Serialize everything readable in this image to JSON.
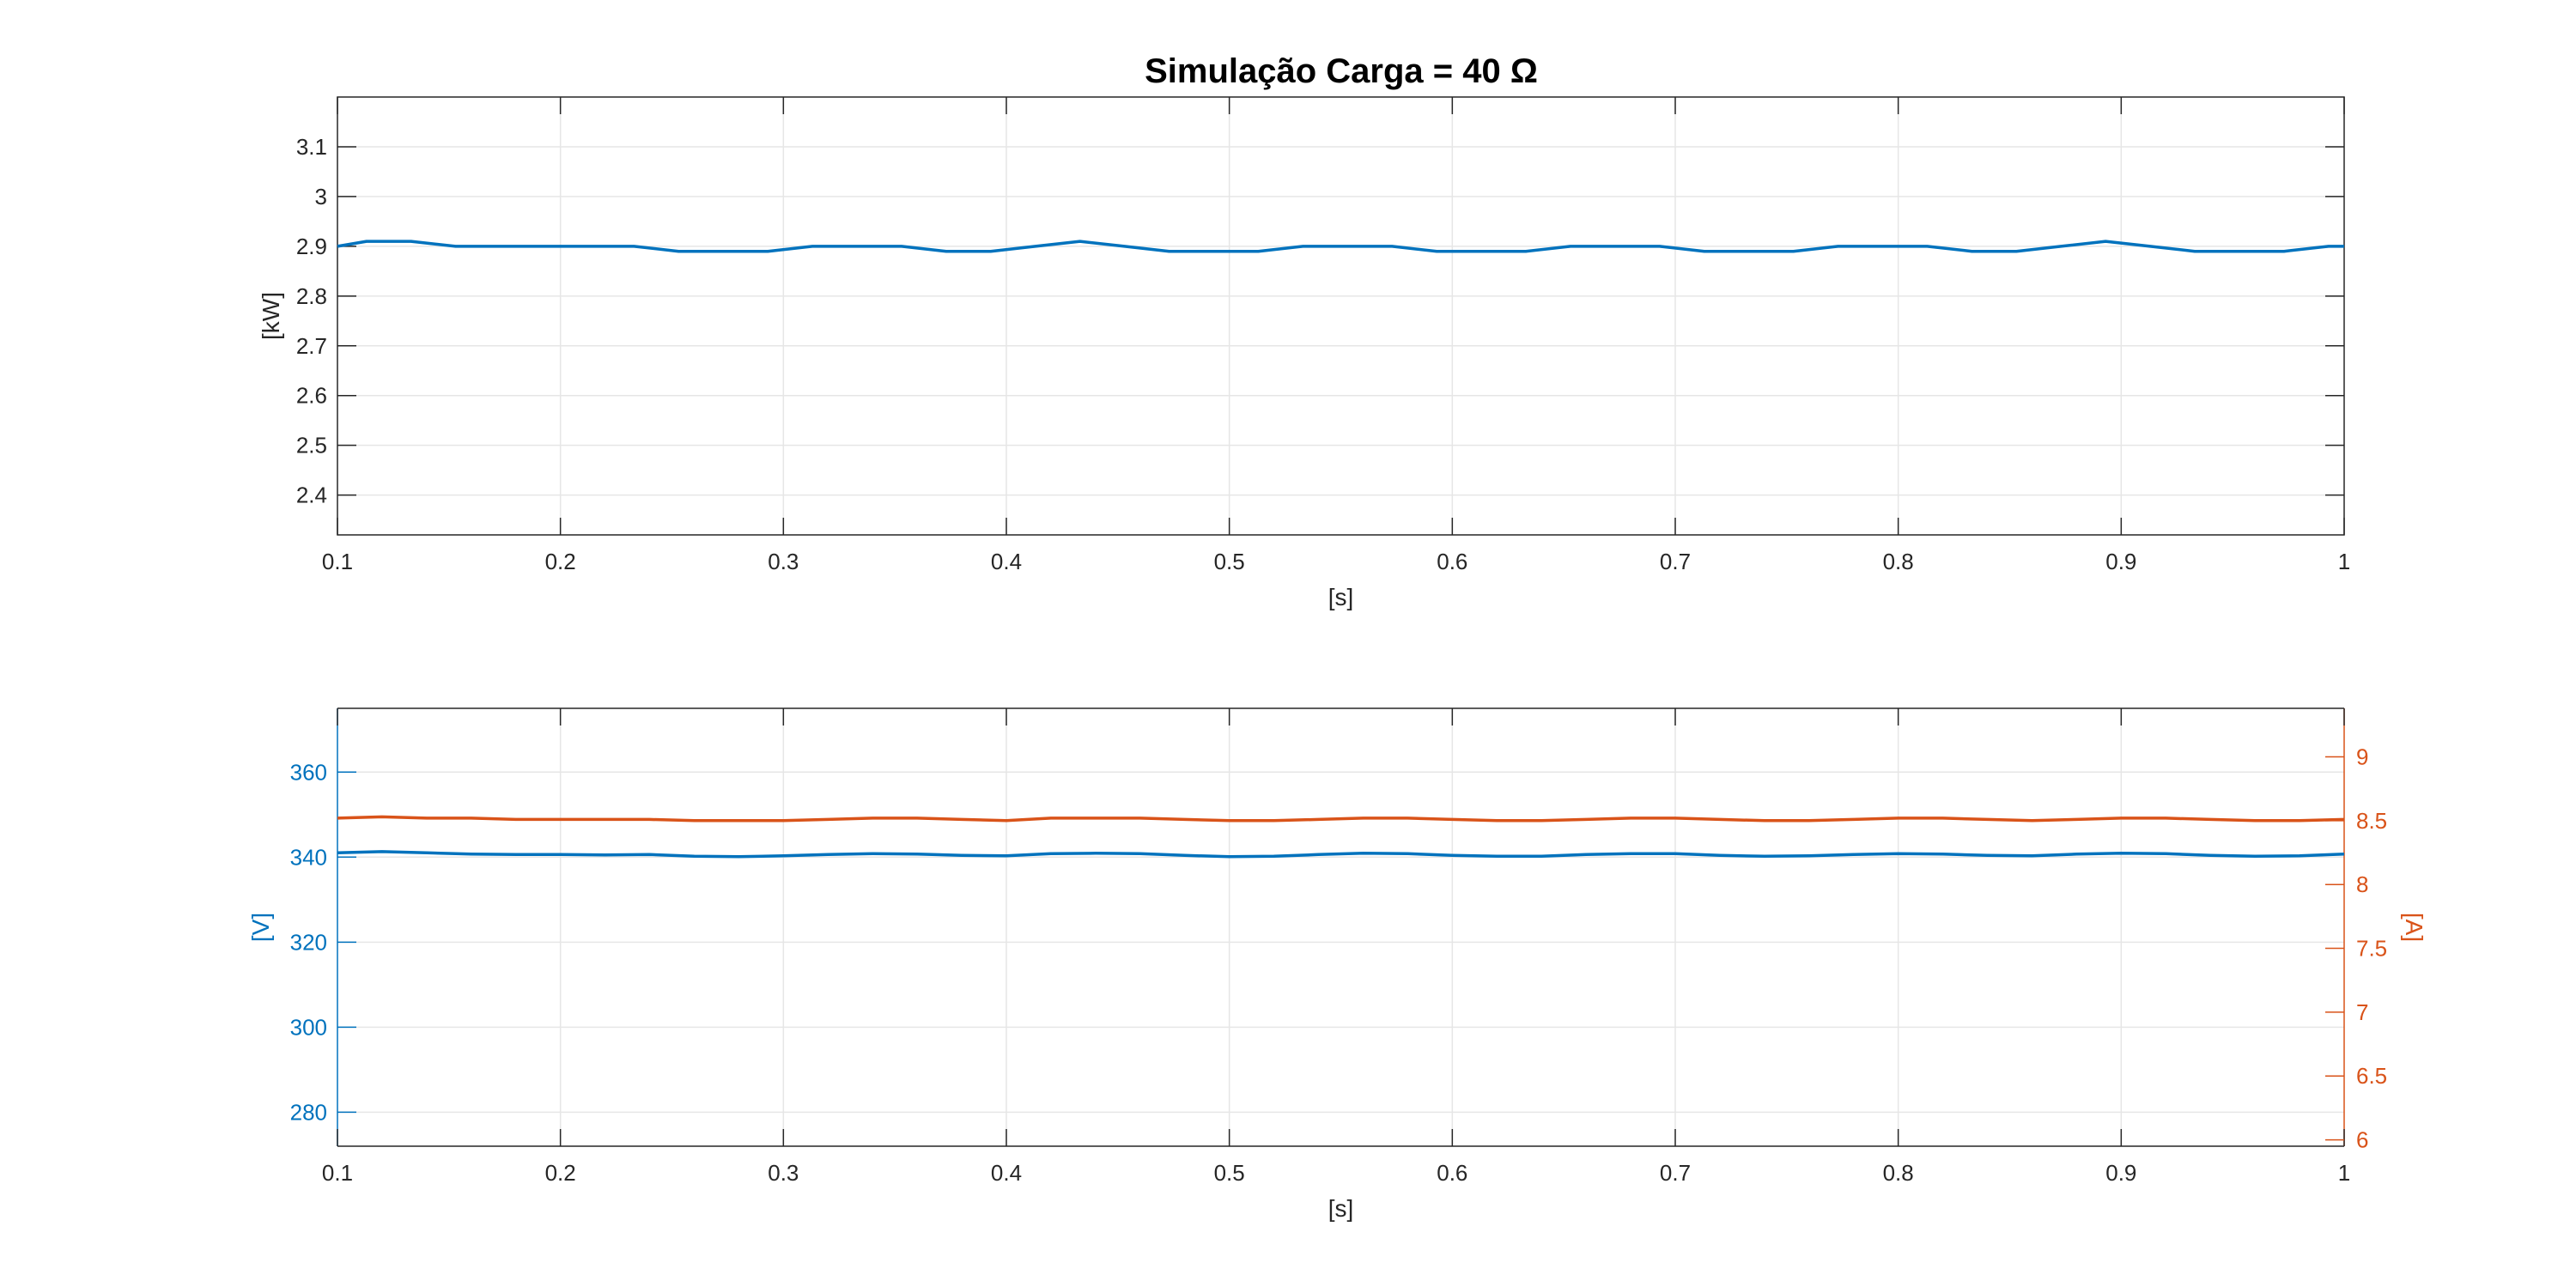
{
  "figure": {
    "title": "Simulação Carga = 40 Ω"
  },
  "chart_data": [
    {
      "type": "line",
      "title": "Simulação Carga = 40 Ω",
      "xlabel": "[s]",
      "ylabel": "[kW]",
      "xlim": [
        0.1,
        1.0
      ],
      "ylim": [
        2.32,
        3.2
      ],
      "xticks": [
        0.1,
        0.2,
        0.3,
        0.4,
        0.5,
        0.6,
        0.7,
        0.8,
        0.9,
        1.0
      ],
      "xtick_labels": [
        "0.1",
        "0.2",
        "0.3",
        "0.4",
        "0.5",
        "0.6",
        "0.7",
        "0.8",
        "0.9",
        "1"
      ],
      "yticks": [
        2.4,
        2.5,
        2.6,
        2.7,
        2.8,
        2.9,
        3.0,
        3.1
      ],
      "ytick_labels": [
        "2.4",
        "2.5",
        "2.6",
        "2.7",
        "2.8",
        "2.9",
        "3",
        "3.1"
      ],
      "grid": true,
      "series": [
        {
          "color": "#0072BD",
          "x": [
            0.1,
            0.113,
            0.133,
            0.153,
            0.173,
            0.193,
            0.213,
            0.233,
            0.253,
            0.273,
            0.293,
            0.313,
            0.333,
            0.353,
            0.373,
            0.393,
            0.413,
            0.433,
            0.453,
            0.473,
            0.493,
            0.513,
            0.533,
            0.553,
            0.573,
            0.593,
            0.613,
            0.633,
            0.653,
            0.673,
            0.693,
            0.713,
            0.733,
            0.753,
            0.773,
            0.793,
            0.813,
            0.833,
            0.853,
            0.873,
            0.893,
            0.913,
            0.933,
            0.953,
            0.973,
            0.993,
            1.0
          ],
          "y": [
            2.9,
            2.91,
            2.91,
            2.9,
            2.9,
            2.9,
            2.9,
            2.9,
            2.89,
            2.89,
            2.89,
            2.9,
            2.9,
            2.9,
            2.89,
            2.89,
            2.9,
            2.91,
            2.9,
            2.89,
            2.89,
            2.89,
            2.9,
            2.9,
            2.9,
            2.89,
            2.89,
            2.89,
            2.9,
            2.9,
            2.9,
            2.89,
            2.89,
            2.89,
            2.9,
            2.9,
            2.9,
            2.89,
            2.89,
            2.9,
            2.91,
            2.9,
            2.89,
            2.89,
            2.89,
            2.9,
            2.9
          ]
        }
      ]
    },
    {
      "type": "line",
      "xlabel": "[s]",
      "ylabel_left": "[V]",
      "ylabel_right": "[A]",
      "xlim": [
        0.1,
        1.0
      ],
      "ylim_left": [
        272,
        375
      ],
      "ylim_right": [
        5.95,
        9.38
      ],
      "xticks": [
        0.1,
        0.2,
        0.3,
        0.4,
        0.5,
        0.6,
        0.7,
        0.8,
        0.9,
        1.0
      ],
      "xtick_labels": [
        "0.1",
        "0.2",
        "0.3",
        "0.4",
        "0.5",
        "0.6",
        "0.7",
        "0.8",
        "0.9",
        "1"
      ],
      "yticks_left": [
        280,
        300,
        320,
        340,
        360
      ],
      "ytick_labels_left": [
        "280",
        "300",
        "320",
        "340",
        "360"
      ],
      "yticks_right": [
        6,
        6.5,
        7,
        7.5,
        8,
        8.5,
        9
      ],
      "ytick_labels_right": [
        "6",
        "6.5",
        "7",
        "7.5",
        "8",
        "8.5",
        "9"
      ],
      "grid": true,
      "left_axis_color": "#0072BD",
      "right_axis_color": "#D95319",
      "series": [
        {
          "axis": "left",
          "color": "#0072BD",
          "x": [
            0.1,
            0.12,
            0.14,
            0.16,
            0.18,
            0.2,
            0.22,
            0.24,
            0.26,
            0.28,
            0.3,
            0.32,
            0.34,
            0.36,
            0.38,
            0.4,
            0.42,
            0.44,
            0.46,
            0.48,
            0.5,
            0.52,
            0.54,
            0.56,
            0.58,
            0.6,
            0.62,
            0.64,
            0.66,
            0.68,
            0.7,
            0.72,
            0.74,
            0.76,
            0.78,
            0.8,
            0.82,
            0.84,
            0.86,
            0.88,
            0.9,
            0.92,
            0.94,
            0.96,
            0.98,
            1.0
          ],
          "y": [
            341.0,
            341.3,
            341.0,
            340.7,
            340.6,
            340.6,
            340.5,
            340.6,
            340.2,
            340.1,
            340.3,
            340.6,
            340.8,
            340.7,
            340.4,
            340.3,
            340.8,
            340.9,
            340.8,
            340.4,
            340.1,
            340.2,
            340.6,
            340.9,
            340.8,
            340.4,
            340.2,
            340.2,
            340.6,
            340.8,
            340.8,
            340.4,
            340.2,
            340.3,
            340.6,
            340.8,
            340.7,
            340.4,
            340.3,
            340.7,
            340.9,
            340.8,
            340.4,
            340.2,
            340.3,
            340.7
          ]
        },
        {
          "axis": "right",
          "color": "#D95319",
          "x": [
            0.1,
            0.12,
            0.14,
            0.16,
            0.18,
            0.2,
            0.22,
            0.24,
            0.26,
            0.28,
            0.3,
            0.32,
            0.34,
            0.36,
            0.38,
            0.4,
            0.42,
            0.44,
            0.46,
            0.48,
            0.5,
            0.52,
            0.54,
            0.56,
            0.58,
            0.6,
            0.62,
            0.64,
            0.66,
            0.68,
            0.7,
            0.72,
            0.74,
            0.76,
            0.78,
            0.8,
            0.82,
            0.84,
            0.86,
            0.88,
            0.9,
            0.92,
            0.94,
            0.96,
            0.98,
            1.0
          ],
          "y": [
            8.52,
            8.53,
            8.52,
            8.52,
            8.51,
            8.51,
            8.51,
            8.51,
            8.5,
            8.5,
            8.5,
            8.51,
            8.52,
            8.52,
            8.51,
            8.5,
            8.52,
            8.52,
            8.52,
            8.51,
            8.5,
            8.5,
            8.51,
            8.52,
            8.52,
            8.51,
            8.5,
            8.5,
            8.51,
            8.52,
            8.52,
            8.51,
            8.5,
            8.5,
            8.51,
            8.52,
            8.52,
            8.51,
            8.5,
            8.51,
            8.52,
            8.52,
            8.51,
            8.5,
            8.5,
            8.51
          ]
        }
      ]
    }
  ]
}
